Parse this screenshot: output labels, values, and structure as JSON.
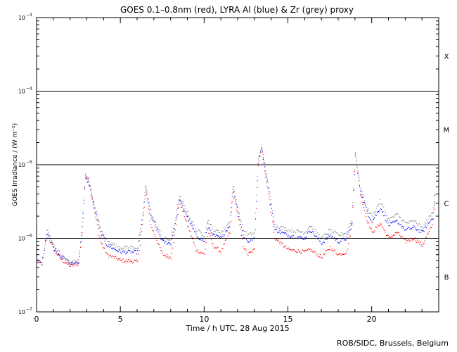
{
  "chart_data": {
    "type": "scatter",
    "title": "GOES 0.1–0.8nm (red), LYRA Al (blue) & Zr (grey) proxy",
    "xlabel": "Time / h UTC, 28 Aug 2015",
    "ylabel": "GOES Irradiance / (W m⁻²)",
    "xlim": [
      0,
      24
    ],
    "ylim": [
      1e-07,
      0.001
    ],
    "yscale": "log",
    "x_ticks": [
      0,
      5,
      10,
      15,
      20
    ],
    "y_tick_labels": [
      {
        "base": "10",
        "exp": "−7",
        "value": 1e-07
      },
      {
        "base": "10",
        "exp": "−6",
        "value": 1e-06
      },
      {
        "base": "10",
        "exp": "−5",
        "value": 1e-05
      },
      {
        "base": "10",
        "exp": "−4",
        "value": 0.0001
      },
      {
        "base": "10",
        "exp": "−3",
        "value": 0.001
      }
    ],
    "flare_class_lines": [
      1e-06,
      1e-05,
      0.0001
    ],
    "flare_classes": [
      {
        "label": "B",
        "value": 3e-07
      },
      {
        "label": "C",
        "value": 3e-06
      },
      {
        "label": "M",
        "value": 3e-05
      },
      {
        "label": "X",
        "value": 0.0003
      }
    ],
    "series": [
      {
        "name": "GOES 0.1-0.8nm",
        "color": "#ff0000",
        "points": [
          [
            0,
            4.8e-07
          ],
          [
            0.3,
            4.5e-07
          ],
          [
            0.6,
            1.1e-06
          ],
          [
            0.8,
            9e-07
          ],
          [
            1,
            7e-07
          ],
          [
            1.5,
            5e-07
          ],
          [
            2,
            4.2e-07
          ],
          [
            2.5,
            4.5e-07
          ],
          [
            2.7,
            1.2e-06
          ],
          [
            2.9,
            7.5e-06
          ],
          [
            3.1,
            6.5e-06
          ],
          [
            3.4,
            2.5e-06
          ],
          [
            3.8,
            9e-07
          ],
          [
            4.2,
            6e-07
          ],
          [
            5,
            5e-07
          ],
          [
            6,
            4.8e-07
          ],
          [
            6.3,
            1.5e-06
          ],
          [
            6.5,
            4.5e-06
          ],
          [
            6.8,
            1.5e-06
          ],
          [
            7.5,
            6e-07
          ],
          [
            8,
            5.5e-07
          ],
          [
            8.3,
            1.5e-06
          ],
          [
            8.5,
            3.2e-06
          ],
          [
            9,
            1.5e-06
          ],
          [
            9.5,
            7e-07
          ],
          [
            10,
            6e-07
          ],
          [
            10.2,
            1.3e-06
          ],
          [
            10.5,
            8e-07
          ],
          [
            11,
            6.5e-07
          ],
          [
            11.5,
            1.2e-06
          ],
          [
            11.7,
            4.2e-06
          ],
          [
            12,
            2e-06
          ],
          [
            12.3,
            8e-07
          ],
          [
            12.6,
            6e-07
          ],
          [
            13,
            7e-07
          ],
          [
            13.2,
            1e-05
          ],
          [
            13.4,
            1.8e-05
          ],
          [
            13.8,
            4e-06
          ],
          [
            14.2,
            1e-06
          ],
          [
            15,
            7e-07
          ],
          [
            16,
            6.5e-07
          ],
          [
            16.3,
            7e-07
          ],
          [
            17,
            5.5e-07
          ],
          [
            17.5,
            7.5e-07
          ],
          [
            18,
            6e-07
          ],
          [
            18.5,
            6.5e-07
          ],
          [
            18.8,
            1.5e-06
          ],
          [
            19,
            1.5e-05
          ],
          [
            19.3,
            4e-06
          ],
          [
            19.7,
            1.8e-06
          ],
          [
            20,
            1.2e-06
          ],
          [
            20.5,
            1.6e-06
          ],
          [
            21,
            1e-06
          ],
          [
            21.5,
            1.2e-06
          ],
          [
            22,
            9e-07
          ],
          [
            22.5,
            1e-06
          ],
          [
            23,
            8e-07
          ],
          [
            23.6,
            1.5e-06
          ],
          [
            23.8,
            4e-06
          ]
        ]
      },
      {
        "name": "LYRA Al proxy",
        "color": "#0000ff",
        "points": [
          [
            0,
            5e-07
          ],
          [
            0.3,
            4.4e-07
          ],
          [
            0.6,
            1.2e-06
          ],
          [
            0.8,
            1e-06
          ],
          [
            1,
            7.5e-07
          ],
          [
            1.5,
            5.5e-07
          ],
          [
            2,
            4.5e-07
          ],
          [
            2.5,
            4.8e-07
          ],
          [
            2.7,
            1.5e-06
          ],
          [
            2.9,
            6.5e-06
          ],
          [
            3.1,
            5.5e-06
          ],
          [
            3.4,
            2.8e-06
          ],
          [
            3.8,
            1.2e-06
          ],
          [
            4.2,
            8e-07
          ],
          [
            5,
            6.5e-07
          ],
          [
            6,
            6.5e-07
          ],
          [
            6.3,
            1.8e-06
          ],
          [
            6.5,
            4.8e-06
          ],
          [
            6.8,
            2e-06
          ],
          [
            7.5,
            9e-07
          ],
          [
            8,
            8.5e-07
          ],
          [
            8.3,
            1.8e-06
          ],
          [
            8.5,
            3.4e-06
          ],
          [
            9,
            1.9e-06
          ],
          [
            9.5,
            1.1e-06
          ],
          [
            10,
            9e-07
          ],
          [
            10.2,
            1.5e-06
          ],
          [
            10.5,
            1.1e-06
          ],
          [
            11,
            1e-06
          ],
          [
            11.5,
            1.5e-06
          ],
          [
            11.7,
            4.8e-06
          ],
          [
            12,
            2.3e-06
          ],
          [
            12.3,
            1.1e-06
          ],
          [
            12.6,
            9e-07
          ],
          [
            13,
            1e-06
          ],
          [
            13.2,
            1.1e-05
          ],
          [
            13.4,
            1.7e-05
          ],
          [
            13.8,
            5e-06
          ],
          [
            14.2,
            1.3e-06
          ],
          [
            15,
            1.1e-06
          ],
          [
            16,
            1e-06
          ],
          [
            16.3,
            1.3e-06
          ],
          [
            17,
            8.5e-07
          ],
          [
            17.5,
            1.1e-06
          ],
          [
            18,
            9e-07
          ],
          [
            18.5,
            1e-06
          ],
          [
            18.8,
            1.6e-06
          ],
          [
            19,
            1.3e-05
          ],
          [
            19.3,
            4.5e-06
          ],
          [
            19.7,
            2.3e-06
          ],
          [
            20,
            1.7e-06
          ],
          [
            20.5,
            2.6e-06
          ],
          [
            21,
            1.5e-06
          ],
          [
            21.5,
            1.7e-06
          ],
          [
            22,
            1.3e-06
          ],
          [
            22.5,
            1.4e-06
          ],
          [
            23,
            1.2e-06
          ],
          [
            23.6,
            1.9e-06
          ],
          [
            23.8,
            4.5e-06
          ]
        ]
      },
      {
        "name": "LYRA Zr proxy",
        "color": "#888888",
        "points": [
          [
            0,
            5.2e-07
          ],
          [
            0.3,
            4.6e-07
          ],
          [
            0.6,
            1.3e-06
          ],
          [
            0.8,
            1.05e-06
          ],
          [
            1,
            8e-07
          ],
          [
            1.5,
            5.8e-07
          ],
          [
            2,
            4.7e-07
          ],
          [
            2.5,
            5e-07
          ],
          [
            2.7,
            1.6e-06
          ],
          [
            2.9,
            7e-06
          ],
          [
            3.1,
            6e-06
          ],
          [
            3.4,
            3e-06
          ],
          [
            3.8,
            1.3e-06
          ],
          [
            4.2,
            9e-07
          ],
          [
            5,
            7.5e-07
          ],
          [
            6,
            7.5e-07
          ],
          [
            6.3,
            2e-06
          ],
          [
            6.5,
            5.2e-06
          ],
          [
            6.8,
            2.2e-06
          ],
          [
            7.5,
            1e-06
          ],
          [
            8,
            9.5e-07
          ],
          [
            8.3,
            2e-06
          ],
          [
            8.5,
            3.7e-06
          ],
          [
            9,
            2.2e-06
          ],
          [
            9.5,
            1.3e-06
          ],
          [
            10,
            1.1e-06
          ],
          [
            10.2,
            1.8e-06
          ],
          [
            10.5,
            1.3e-06
          ],
          [
            11,
            1.2e-06
          ],
          [
            11.5,
            1.7e-06
          ],
          [
            11.7,
            5.3e-06
          ],
          [
            12,
            2.6e-06
          ],
          [
            12.3,
            1.3e-06
          ],
          [
            12.6,
            1.1e-06
          ],
          [
            13,
            1.2e-06
          ],
          [
            13.2,
            1.2e-05
          ],
          [
            13.4,
            1.8e-05
          ],
          [
            13.8,
            5.5e-06
          ],
          [
            14.2,
            1.5e-06
          ],
          [
            15,
            1.3e-06
          ],
          [
            16,
            1.2e-06
          ],
          [
            16.3,
            1.5e-06
          ],
          [
            17,
            1e-06
          ],
          [
            17.5,
            1.3e-06
          ],
          [
            18,
            1.1e-06
          ],
          [
            18.5,
            1.2e-06
          ],
          [
            18.8,
            1.8e-06
          ],
          [
            19,
            1.4e-05
          ],
          [
            19.3,
            5e-06
          ],
          [
            19.7,
            2.6e-06
          ],
          [
            20,
            2e-06
          ],
          [
            20.5,
            3.2e-06
          ],
          [
            21,
            1.8e-06
          ],
          [
            21.5,
            2.1e-06
          ],
          [
            22,
            1.6e-06
          ],
          [
            22.5,
            1.7e-06
          ],
          [
            23,
            1.4e-06
          ],
          [
            23.6,
            2.2e-06
          ],
          [
            23.8,
            5e-06
          ]
        ]
      }
    ]
  },
  "credit": "ROB/SIDC, Brussels, Belgium"
}
